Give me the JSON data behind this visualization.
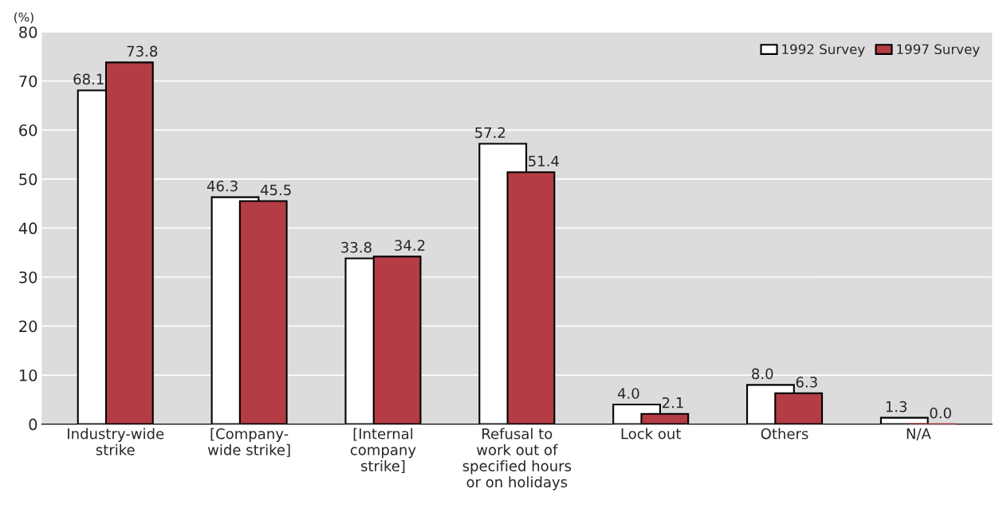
{
  "chart_data": {
    "type": "bar",
    "ylabel": "(%)",
    "categories": [
      "Industry-wide\nstrike",
      "[Company-\nwide strike]",
      "[Internal\ncompany\nstrike]",
      "Refusal to\nwork out of\nspecified hours\nor on holidays",
      "Lock out",
      "Others",
      "N/A"
    ],
    "series": [
      {
        "name": "1992 Survey",
        "color": "#ffffff",
        "values": [
          68.1,
          46.3,
          33.8,
          57.2,
          4.0,
          8.0,
          1.3
        ],
        "value_labels": [
          "68.1",
          "46.3",
          "33.8",
          "57.2",
          "4.0",
          "8.0",
          "1.3"
        ]
      },
      {
        "name": "1997 Survey",
        "color": "#b33c45",
        "values": [
          73.8,
          45.5,
          34.2,
          51.4,
          2.1,
          6.3,
          0.0
        ],
        "value_labels": [
          "73.8",
          "45.5",
          "34.2",
          "51.4",
          "2.1",
          "6.3",
          "0.0"
        ]
      }
    ],
    "ylim": [
      0,
      80
    ],
    "yticks": [
      0,
      10,
      20,
      30,
      40,
      50,
      60,
      70,
      80
    ],
    "grid": "y",
    "legend": "top right"
  }
}
